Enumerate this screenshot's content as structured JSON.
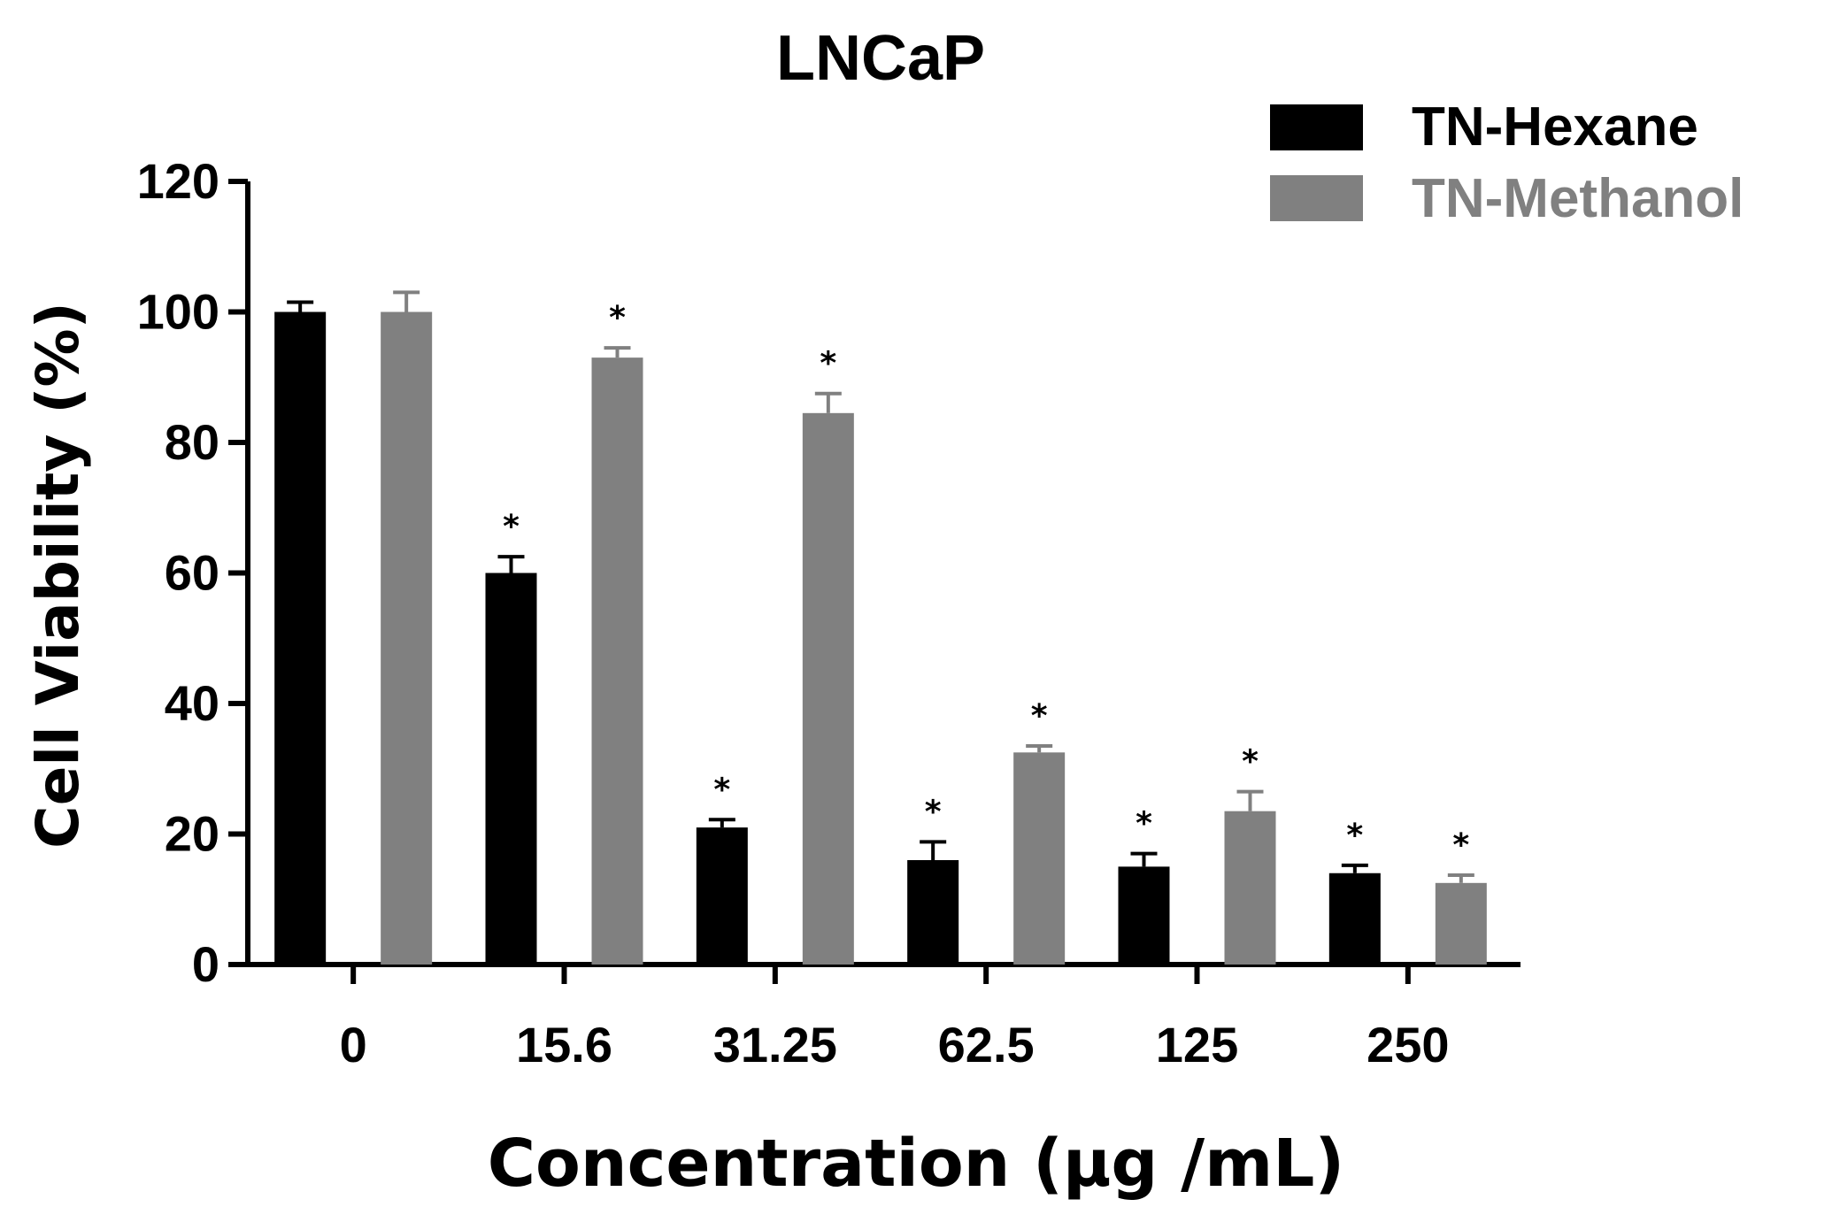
{
  "chart_data": {
    "type": "bar",
    "title": "LNCaP",
    "xlabel": "Concentration (μg /mL)",
    "ylabel": "Cell Viability (%)",
    "ylim": [
      0,
      120
    ],
    "yticks": [
      "0",
      "20",
      "40",
      "60",
      "80",
      "100",
      "120"
    ],
    "categories": [
      "0",
      "15.6",
      "31.25",
      "62.5",
      "125",
      "250"
    ],
    "significance_mark": "*",
    "series": [
      {
        "name": "TN-Hexane",
        "color": "#000000",
        "values": [
          100,
          60,
          21,
          16,
          15,
          14
        ],
        "errors": [
          1.5,
          2.5,
          1.2,
          2.8,
          2.0,
          1.2
        ],
        "significant": [
          false,
          true,
          true,
          true,
          true,
          true
        ]
      },
      {
        "name": "TN-Methanol",
        "color": "#808080",
        "values": [
          100,
          93,
          84.5,
          32.5,
          23.5,
          12.5
        ],
        "errors": [
          3.0,
          1.5,
          3.0,
          1.0,
          3.0,
          1.2
        ],
        "significant": [
          false,
          true,
          true,
          true,
          true,
          true
        ]
      }
    ]
  }
}
